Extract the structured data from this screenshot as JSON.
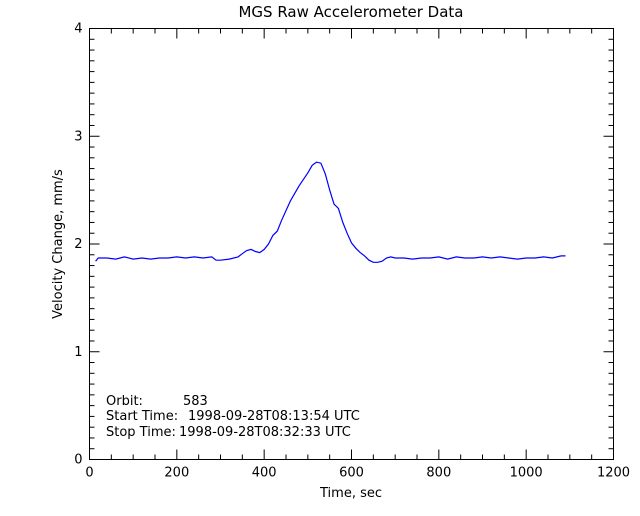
{
  "chart_data": {
    "type": "line",
    "title": "MGS Raw Accelerometer Data",
    "xlabel": "Time, sec",
    "ylabel": "Velocity Change, mm/s",
    "xlim": [
      0,
      1200
    ],
    "ylim": [
      0,
      4
    ],
    "xticks": [
      0,
      200,
      400,
      600,
      800,
      1000,
      1200
    ],
    "xtick_labels": [
      "0",
      "200",
      "400",
      "600",
      "800",
      "1000",
      "1200"
    ],
    "yticks": [
      0,
      1,
      2,
      3,
      4
    ],
    "ytick_labels": [
      "0",
      "1",
      "2",
      "3",
      "4"
    ],
    "grid": false,
    "line_color": "#0000ff",
    "annotations": [
      {
        "label": "Orbit:",
        "value": "583"
      },
      {
        "label": "Start Time:",
        "value": "1998-09-28T08:13:54 UTC"
      },
      {
        "label": "Stop Time:",
        "value": "1998-09-28T08:32:33 UTC"
      }
    ],
    "series": [
      {
        "x": [
          14,
          20,
          40,
          60,
          80,
          100,
          120,
          140,
          160,
          180,
          200,
          220,
          240,
          260,
          280,
          290,
          300,
          320,
          340,
          350,
          360,
          370,
          380,
          390,
          400,
          410,
          420,
          430,
          440,
          450,
          460,
          470,
          480,
          490,
          500,
          510,
          520,
          530,
          540,
          550,
          560,
          570,
          580,
          590,
          600,
          610,
          620,
          630,
          640,
          650,
          660,
          670,
          680,
          690,
          700,
          720,
          740,
          760,
          780,
          800,
          820,
          840,
          860,
          880,
          900,
          920,
          940,
          960,
          980,
          1000,
          1020,
          1040,
          1060,
          1080,
          1090
        ],
        "y": [
          1.84,
          1.87,
          1.87,
          1.86,
          1.88,
          1.86,
          1.87,
          1.86,
          1.87,
          1.87,
          1.88,
          1.87,
          1.88,
          1.87,
          1.88,
          1.85,
          1.85,
          1.86,
          1.88,
          1.91,
          1.94,
          1.95,
          1.93,
          1.92,
          1.95,
          2.0,
          2.08,
          2.12,
          2.22,
          2.31,
          2.4,
          2.47,
          2.54,
          2.6,
          2.66,
          2.73,
          2.76,
          2.75,
          2.65,
          2.5,
          2.37,
          2.33,
          2.2,
          2.1,
          2.01,
          1.96,
          1.92,
          1.89,
          1.85,
          1.83,
          1.83,
          1.84,
          1.87,
          1.88,
          1.87,
          1.87,
          1.86,
          1.87,
          1.87,
          1.88,
          1.86,
          1.88,
          1.87,
          1.87,
          1.88,
          1.87,
          1.88,
          1.87,
          1.86,
          1.87,
          1.87,
          1.88,
          1.87,
          1.89,
          1.89
        ]
      }
    ]
  }
}
